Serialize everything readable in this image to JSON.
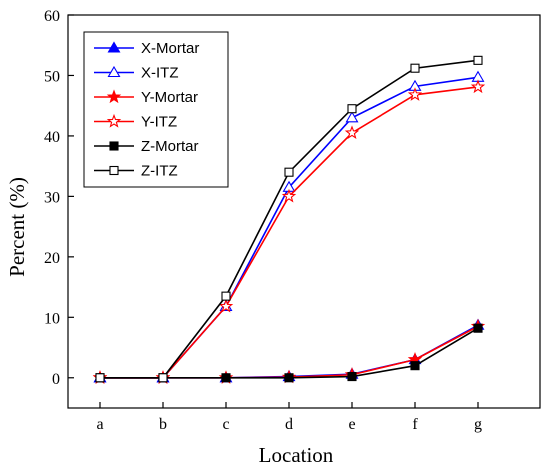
{
  "chart_data": {
    "type": "line",
    "xlabel": "Location",
    "ylabel": "Percent (%)",
    "categories": [
      "a",
      "b",
      "c",
      "d",
      "e",
      "f",
      "g"
    ],
    "ylim": [
      -5,
      60
    ],
    "yticks": [
      0,
      10,
      20,
      30,
      40,
      50,
      60
    ],
    "grid": false,
    "legend_position": "top-left",
    "series": [
      {
        "name": "X-Mortar",
        "color": "#0000ff",
        "marker": "triangle",
        "filled": true,
        "values": [
          0,
          0,
          0,
          0.2,
          0.6,
          3.0,
          8.7
        ]
      },
      {
        "name": "X-ITZ",
        "color": "#0000ff",
        "marker": "triangle",
        "filled": false,
        "values": [
          0,
          0,
          11.8,
          31.5,
          43.0,
          48.2,
          49.7
        ]
      },
      {
        "name": "Y-Mortar",
        "color": "#ff0000",
        "marker": "star",
        "filled": true,
        "values": [
          0,
          0,
          0,
          0.1,
          0.5,
          3.0,
          8.5
        ]
      },
      {
        "name": "Y-ITZ",
        "color": "#ff0000",
        "marker": "star",
        "filled": false,
        "values": [
          0,
          0,
          11.8,
          30.0,
          40.5,
          46.8,
          48.1
        ]
      },
      {
        "name": "Z-Mortar",
        "color": "#000000",
        "marker": "square",
        "filled": true,
        "values": [
          0,
          0,
          0,
          0,
          0.2,
          2.0,
          8.2
        ]
      },
      {
        "name": "Z-ITZ",
        "color": "#000000",
        "marker": "square",
        "filled": false,
        "values": [
          0,
          0,
          13.5,
          34.0,
          44.5,
          51.2,
          52.5
        ]
      }
    ]
  }
}
